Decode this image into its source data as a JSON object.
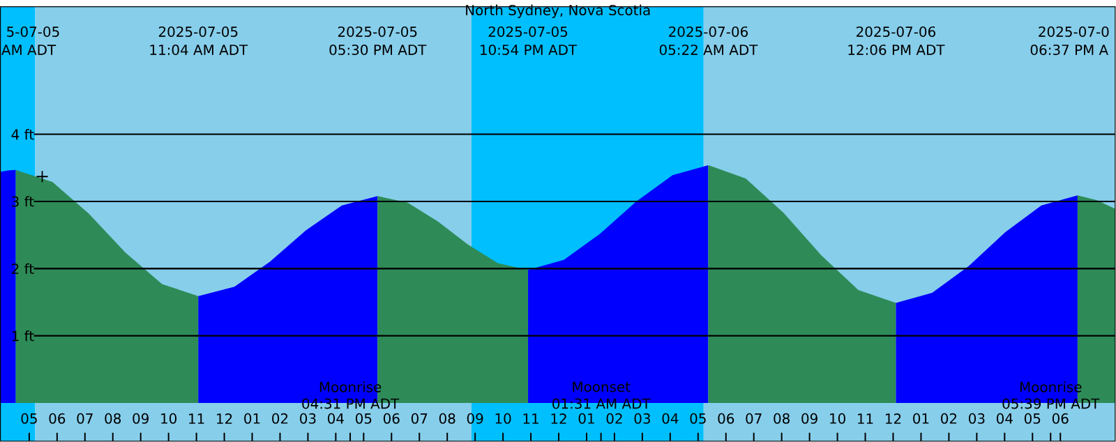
{
  "chart_data": {
    "type": "area",
    "title": "North Sydney, Nova Scotia",
    "xlim": [
      "2025-07-05T03:58",
      "2025-07-06T19:58"
    ],
    "ylim": [
      -0.57,
      5.9
    ],
    "xticks": [
      {
        "value": "2025-07-05T05:00",
        "label": "05"
      },
      {
        "value": "2025-07-05T06:00",
        "label": "06"
      },
      {
        "value": "2025-07-05T07:00",
        "label": "07"
      },
      {
        "value": "2025-07-05T08:00",
        "label": "08"
      },
      {
        "value": "2025-07-05T09:00",
        "label": "09"
      },
      {
        "value": "2025-07-05T10:00",
        "label": "10"
      },
      {
        "value": "2025-07-05T11:00",
        "label": "11"
      },
      {
        "value": "2025-07-05T12:00",
        "label": "12"
      },
      {
        "value": "2025-07-05T13:00",
        "label": "01"
      },
      {
        "value": "2025-07-05T14:00",
        "label": "02"
      },
      {
        "value": "2025-07-05T15:00",
        "label": "03"
      },
      {
        "value": "2025-07-05T16:00",
        "label": "04"
      },
      {
        "value": "2025-07-05T17:00",
        "label": "05"
      },
      {
        "value": "2025-07-05T18:00",
        "label": "06"
      },
      {
        "value": "2025-07-05T19:00",
        "label": "07"
      },
      {
        "value": "2025-07-05T20:00",
        "label": "08"
      },
      {
        "value": "2025-07-05T21:00",
        "label": "09"
      },
      {
        "value": "2025-07-05T22:00",
        "label": "10"
      },
      {
        "value": "2025-07-05T23:00",
        "label": "11"
      },
      {
        "value": "2025-07-06T00:00",
        "label": "12"
      },
      {
        "value": "2025-07-06T01:00",
        "label": "01"
      },
      {
        "value": "2025-07-06T02:00",
        "label": "02"
      },
      {
        "value": "2025-07-06T03:00",
        "label": "03"
      },
      {
        "value": "2025-07-06T04:00",
        "label": "04"
      },
      {
        "value": "2025-07-06T05:00",
        "label": "05"
      },
      {
        "value": "2025-07-06T06:00",
        "label": "06"
      },
      {
        "value": "2025-07-06T07:00",
        "label": "07"
      },
      {
        "value": "2025-07-06T08:00",
        "label": "08"
      },
      {
        "value": "2025-07-06T09:00",
        "label": "09"
      },
      {
        "value": "2025-07-06T10:00",
        "label": "10"
      },
      {
        "value": "2025-07-06T11:00",
        "label": "11"
      },
      {
        "value": "2025-07-06T12:00",
        "label": "12"
      },
      {
        "value": "2025-07-06T13:00",
        "label": "01"
      },
      {
        "value": "2025-07-06T14:00",
        "label": "02"
      },
      {
        "value": "2025-07-06T15:00",
        "label": "03"
      },
      {
        "value": "2025-07-06T16:00",
        "label": "04"
      },
      {
        "value": "2025-07-06T17:00",
        "label": "05"
      },
      {
        "value": "2025-07-06T18:00",
        "label": "06"
      },
      {
        "value": "2025-07-05T16:31",
        "label": null
      },
      {
        "value": "2025-07-06T01:31",
        "label": null
      },
      {
        "value": "2025-07-06T17:39",
        "label": null
      }
    ],
    "yticks": [
      {
        "value": 1,
        "label": "1 ft"
      },
      {
        "value": 2,
        "label": "2 ft"
      },
      {
        "value": 3,
        "label": "3 ft"
      },
      {
        "value": 4,
        "label": "4 ft"
      }
    ],
    "grid": "y",
    "bands": [
      {
        "axis": "x",
        "from": "2025-07-05T03:58",
        "to": "2025-07-05T05:13",
        "color": "#00bfff"
      },
      {
        "axis": "x",
        "from": "2025-07-05T05:13",
        "to": "2025-07-05T20:52",
        "color": "#87ceeb"
      },
      {
        "axis": "x",
        "from": "2025-07-05T20:52",
        "to": "2025-07-06T05:12",
        "color": "#00bfff"
      },
      {
        "axis": "x",
        "from": "2025-07-06T05:12",
        "to": "2025-07-06T19:58",
        "color": "#87ceeb"
      }
    ],
    "annotations": [
      "5-07-05",
      "AM ADT",
      "2025-07-05",
      "11:04 AM ADT",
      "2025-07-05",
      "05:30 PM ADT",
      "2025-07-05",
      "10:54 PM ADT",
      "2025-07-06",
      "05:22 AM ADT",
      "2025-07-06",
      "12:06 PM ADT",
      "2025-07-0",
      "06:37 PM A",
      "Moonrise",
      "04:31 PM ADT",
      "Moonset",
      "01:31 AM ADT",
      "Moonrise",
      "05:39 PM ADT"
    ],
    "series": [
      {
        "color": "#0000ff",
        "x": [
          "2025-07-05T03:58",
          "2025-07-05T04:15",
          "2025-07-05T04:31"
        ],
        "values": [
          3.44,
          3.46,
          3.47
        ]
      },
      {
        "color": "#2e8b57",
        "x": [
          "2025-07-05T04:31",
          "2025-07-05T05:50",
          "2025-07-05T07:08",
          "2025-07-05T08:27",
          "2025-07-05T09:46",
          "2025-07-05T11:04"
        ],
        "values": [
          3.47,
          3.29,
          2.82,
          2.24,
          1.77,
          1.59
        ]
      },
      {
        "color": "#0000ff",
        "x": [
          "2025-07-05T11:04",
          "2025-07-05T12:22",
          "2025-07-05T13:38",
          "2025-07-05T14:56",
          "2025-07-05T16:13",
          "2025-07-05T17:30"
        ],
        "values": [
          1.59,
          1.73,
          2.1,
          2.57,
          2.94,
          3.08
        ]
      },
      {
        "color": "#2e8b57",
        "x": [
          "2025-07-05T17:30",
          "2025-07-05T18:35",
          "2025-07-05T19:40",
          "2025-07-05T20:44",
          "2025-07-05T21:49",
          "2025-07-05T22:54"
        ],
        "values": [
          3.08,
          2.98,
          2.7,
          2.36,
          2.08,
          1.98
        ]
      },
      {
        "color": "#0000ff",
        "x": [
          "2025-07-05T22:54",
          "2025-07-06T00:11",
          "2025-07-06T01:29",
          "2025-07-06T02:47",
          "2025-07-06T04:05",
          "2025-07-06T05:22"
        ],
        "values": [
          1.98,
          2.13,
          2.52,
          3.0,
          3.39,
          3.54
        ]
      },
      {
        "color": "#2e8b57",
        "x": [
          "2025-07-06T05:22",
          "2025-07-06T06:43",
          "2025-07-06T08:04",
          "2025-07-06T09:25",
          "2025-07-06T10:45",
          "2025-07-06T12:06"
        ],
        "values": [
          3.54,
          3.34,
          2.83,
          2.2,
          1.68,
          1.49
        ]
      },
      {
        "color": "#0000ff",
        "x": [
          "2025-07-06T12:06",
          "2025-07-06T13:24",
          "2025-07-06T14:43",
          "2025-07-06T16:01",
          "2025-07-06T17:19",
          "2025-07-06T18:37"
        ],
        "values": [
          1.49,
          1.64,
          2.04,
          2.54,
          2.94,
          3.09
        ]
      },
      {
        "color": "#2e8b57",
        "x": [
          "2025-07-06T18:37",
          "2025-07-06T19:18",
          "2025-07-06T19:58"
        ],
        "values": [
          3.09,
          3.02,
          2.89
        ]
      },
      {
        "type": "scatter",
        "color": "#000000",
        "marker": "cross",
        "x": [
          "2025-07-05T05:28"
        ],
        "values": [
          3.37
        ]
      }
    ]
  }
}
